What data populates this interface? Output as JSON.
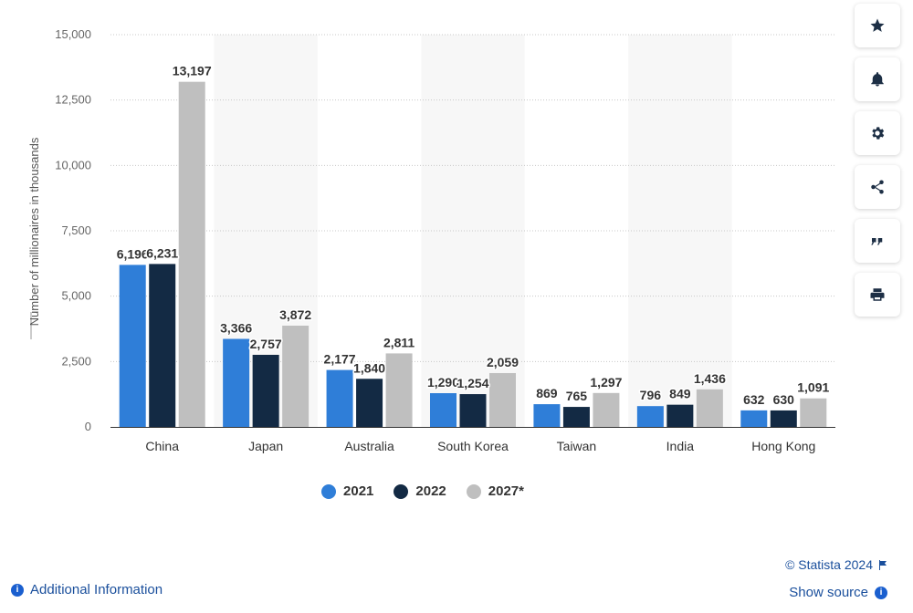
{
  "chart_data": {
    "type": "bar",
    "title": "",
    "xlabel": "",
    "ylabel": "Number of millionaires in thousands",
    "ylim": [
      0,
      15000
    ],
    "yticks": [
      0,
      2500,
      5000,
      7500,
      10000,
      12500,
      15000
    ],
    "ytick_labels": [
      "0",
      "2,500",
      "5,000",
      "7,500",
      "10,000",
      "12,500",
      "15,000"
    ],
    "categories": [
      "China",
      "Japan",
      "Australia",
      "South Korea",
      "Taiwan",
      "India",
      "Hong Kong"
    ],
    "series": [
      {
        "name": "2021",
        "color": "#2f7ed8",
        "values": [
          6196,
          3366,
          2177,
          1290,
          869,
          796,
          632
        ],
        "labels": [
          "6,196",
          "3,366",
          "2,177",
          "1,290",
          "869",
          "796",
          "632"
        ]
      },
      {
        "name": "2022",
        "color": "#132a44",
        "values": [
          6231,
          2757,
          1840,
          1254,
          765,
          849,
          630
        ],
        "labels": [
          "6,231",
          "2,757",
          "1,840",
          "1,254",
          "765",
          "849",
          "630"
        ]
      },
      {
        "name": "2027*",
        "color": "#bfbfbf",
        "values": [
          13197,
          3872,
          2811,
          2059,
          1297,
          1436,
          1091
        ],
        "labels": [
          "13,197",
          "3,872",
          "2,811",
          "2,059",
          "1,297",
          "1,436",
          "1,091"
        ]
      }
    ],
    "grid": true,
    "legend_position": "bottom"
  },
  "toolbar": {
    "icons": [
      "star-icon",
      "bell-icon",
      "gear-icon",
      "share-icon",
      "quote-icon",
      "print-icon"
    ]
  },
  "footer": {
    "additional_info": "Additional Information",
    "copyright": "© Statista 2024",
    "show_source": "Show source"
  }
}
